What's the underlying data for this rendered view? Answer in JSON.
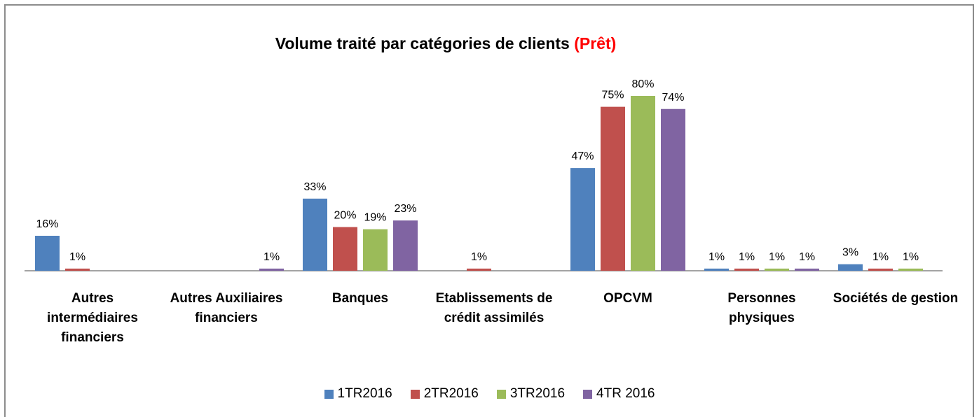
{
  "chart_data": {
    "type": "bar",
    "title": "Volume traité par catégories de clients",
    "title_highlight": "(Prêt)",
    "title_highlight_color": "#ff0000",
    "categories": [
      "Autres intermédiaires financiers",
      "Autres Auxiliaires financiers",
      "Banques",
      "Etablissements de crédit assimilés",
      "OPCVM",
      "Personnes physiques",
      "Sociétés de gestion"
    ],
    "series": [
      {
        "name": "1TR2016",
        "color": "#4f81bd",
        "values": [
          16,
          null,
          33,
          null,
          47,
          1,
          3
        ],
        "value_labels": [
          "16%",
          null,
          "33%",
          null,
          "47%",
          "1%",
          "3%"
        ]
      },
      {
        "name": "2TR2016",
        "color": "#c0504d",
        "values": [
          1,
          null,
          20,
          1,
          75,
          1,
          1
        ],
        "value_labels": [
          "1%",
          null,
          "20%",
          "1%",
          "75%",
          "1%",
          "1%"
        ]
      },
      {
        "name": "3TR2016",
        "color": "#9bbb59",
        "values": [
          null,
          null,
          19,
          null,
          80,
          1,
          1
        ],
        "value_labels": [
          null,
          null,
          "19%",
          null,
          "80%",
          "1%",
          "1%"
        ]
      },
      {
        "name": "4TR 2016",
        "color": "#8064a2",
        "values": [
          null,
          1,
          23,
          null,
          74,
          1,
          null
        ],
        "value_labels": [
          null,
          "1%",
          "23%",
          null,
          "74%",
          "1%",
          null
        ]
      }
    ]
  }
}
